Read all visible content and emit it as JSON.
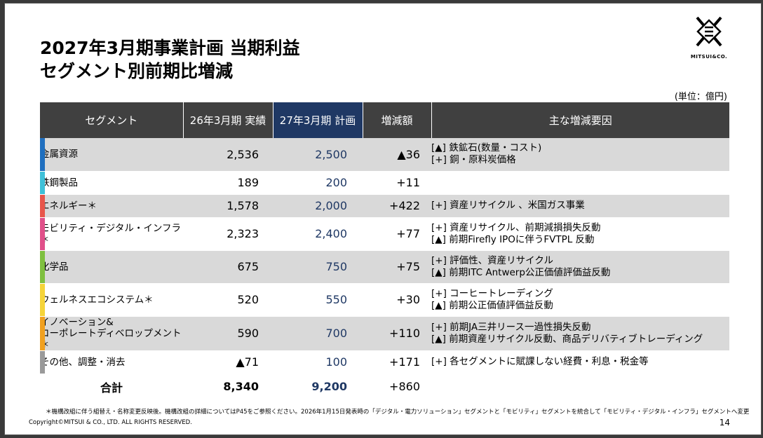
{
  "title_lines": [
    "2027年3月期事業計画 当期利益",
    "セグメント別前期比増減"
  ],
  "logo": {
    "icon": "mitsui-logo-icon",
    "text": "MITSUI&CO."
  },
  "unit": "(単位：億円)",
  "table": {
    "headers": {
      "segment": "セグメント",
      "prev": "26年3月期 実績",
      "plan": "27年3月期 計画",
      "diff": "増減額",
      "reasons": "主な増減要因"
    },
    "rows": [
      {
        "segment": "金属資源",
        "prev": "2,536",
        "plan": "2,500",
        "diff": "▲36",
        "color": "#1f6fbf",
        "reasons": [
          "[▲] 鉄鉱石(数量・コスト)",
          "[+] 銅・原料炭価格"
        ]
      },
      {
        "segment": "鉄鋼製品",
        "prev": "189",
        "plan": "200",
        "diff": "+11",
        "color": "#3fc0d8",
        "reasons": []
      },
      {
        "segment": "エネルギー＊",
        "prev": "1,578",
        "plan": "2,000",
        "diff": "+422",
        "color": "#e8564b",
        "reasons": [
          "[+] 資産リサイクル 、米国ガス事業"
        ]
      },
      {
        "segment": "モビリティ・デジタル・インフラ＊",
        "prev": "2,323",
        "plan": "2,400",
        "diff": "+77",
        "color": "#e0508a",
        "reasons": [
          "[+] 資産リサイクル、前期減損損失反動",
          "[▲] 前期Firefly IPOに伴うFVTPL 反動"
        ]
      },
      {
        "segment": "化学品",
        "prev": "675",
        "plan": "750",
        "diff": "+75",
        "color": "#7fbf3f",
        "reasons": [
          "[+] 評価性、資産リサイクル",
          "[▲] 前期ITC Antwerp公正価値評価益反動"
        ]
      },
      {
        "segment": "ウェルネスエコシステム＊",
        "prev": "520",
        "plan": "550",
        "diff": "+30",
        "color": "#f5d43a",
        "reasons": [
          "[+] コーヒートレーディング",
          "[▲] 前期公正価値評価益反動"
        ]
      },
      {
        "segment": "イノベーション&\nコーポレートディベロップメント＊",
        "prev": "590",
        "plan": "700",
        "diff": "+110",
        "color": "#f0a020",
        "reasons": [
          "[+] 前期JA三井リース一過性損失反動",
          "[▲] 前期資産リサイクル反動、商品デリバティブトレーディング"
        ]
      },
      {
        "segment": "その他、調整・消去",
        "prev": "▲71",
        "plan": "100",
        "diff": "+171",
        "color": "#9a9a9a",
        "reasons": [
          "[+] 各セグメントに賦課しない経費・利息・税金等"
        ]
      }
    ],
    "total": {
      "label": "合計",
      "prev": "8,340",
      "plan": "9,200",
      "diff": "+860"
    }
  },
  "footnote": "＊機構改組に伴う組替え・名称変更反映後。機構改組の詳細についてはP45をご参照ください。2026年1月15日発表時の「デジタル・電力ソリューション」セグメントと「モビリティ」セグメントを統合して「モビリティ・デジタル・インフラ」セグメントへ変更",
  "copyright": "Copyright©MITSUI & CO., LTD. ALL RIGHTS RESERVED.",
  "page_number": "14"
}
